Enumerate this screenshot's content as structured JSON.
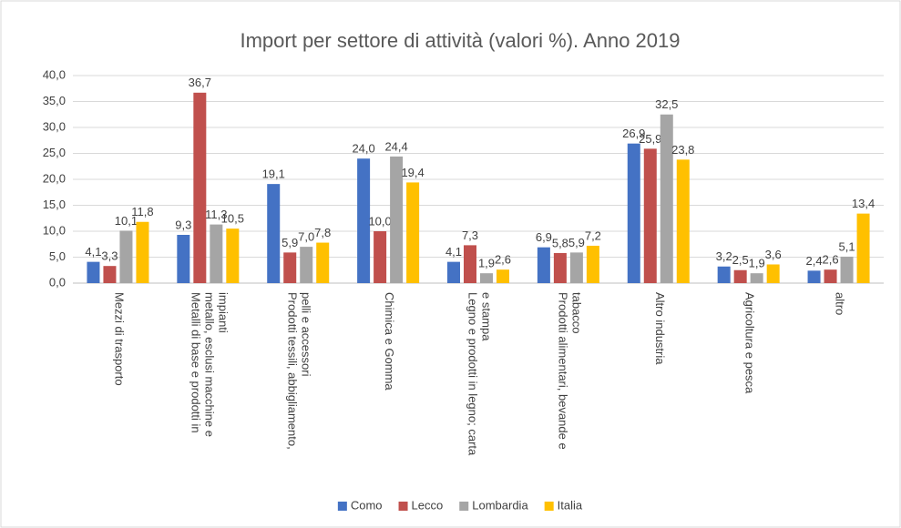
{
  "chart_data": {
    "type": "bar",
    "title": "Import per settore di attività (valori %). Anno 2019",
    "categories": [
      "Mezzi di trasporto",
      "Metalli di base e prodotti in metallo, esclusi macchine e impianti",
      "Prodotti tessili, abbigliamento, pelli e accessori",
      "Chimica e Gomma",
      "Legno e prodotti in legno; carta e stampa",
      "Prodotti alimentari, bevande e tabacco",
      "Altro industria",
      "Agricoltura e pesca",
      "altro"
    ],
    "series": [
      {
        "name": "Como",
        "color": "#4472c4",
        "values": [
          4.1,
          9.3,
          19.1,
          24.0,
          4.1,
          6.9,
          26.9,
          3.2,
          2.4
        ],
        "value_labels": [
          "4,1",
          "9,3",
          "19,1",
          "24,0",
          "4,1",
          "6,9",
          "26,9",
          "3,2",
          "2,4"
        ]
      },
      {
        "name": "Lecco",
        "color": "#c0504d",
        "values": [
          3.3,
          36.7,
          5.9,
          10.0,
          7.3,
          5.8,
          25.9,
          2.5,
          2.6
        ],
        "value_labels": [
          "3,3",
          "36,7",
          "5,9",
          "10,0",
          "7,3",
          "5,8",
          "25,9",
          "2,5",
          "2,6"
        ]
      },
      {
        "name": "Lombardia",
        "color": "#a5a5a5",
        "values": [
          10.1,
          11.3,
          7.0,
          24.4,
          1.9,
          5.9,
          32.5,
          1.9,
          5.1
        ],
        "value_labels": [
          "10,1",
          "11,3",
          "7,0",
          "24,4",
          "1,9",
          "5,9",
          "32,5",
          "1,9",
          "5,1"
        ]
      },
      {
        "name": "Italia",
        "color": "#ffc000",
        "values": [
          11.8,
          10.5,
          7.8,
          19.4,
          2.6,
          7.2,
          23.8,
          3.6,
          13.4
        ],
        "value_labels": [
          "11,8",
          "10,5",
          "7,8",
          "19,4",
          "2,6",
          "7,2",
          "23,8",
          "3,6",
          "13,4"
        ]
      }
    ],
    "ylim": [
      0,
      40
    ],
    "yticks": [
      {
        "value": 0,
        "label": "0,0"
      },
      {
        "value": 5,
        "label": "5,0"
      },
      {
        "value": 10,
        "label": "10,0"
      },
      {
        "value": 15,
        "label": "15,0"
      },
      {
        "value": 20,
        "label": "20,0"
      },
      {
        "value": 25,
        "label": "25,0"
      },
      {
        "value": 30,
        "label": "30,0"
      },
      {
        "value": 35,
        "label": "35,0"
      },
      {
        "value": 40,
        "label": "40,0"
      }
    ],
    "grid": true,
    "legend": "bottom"
  }
}
